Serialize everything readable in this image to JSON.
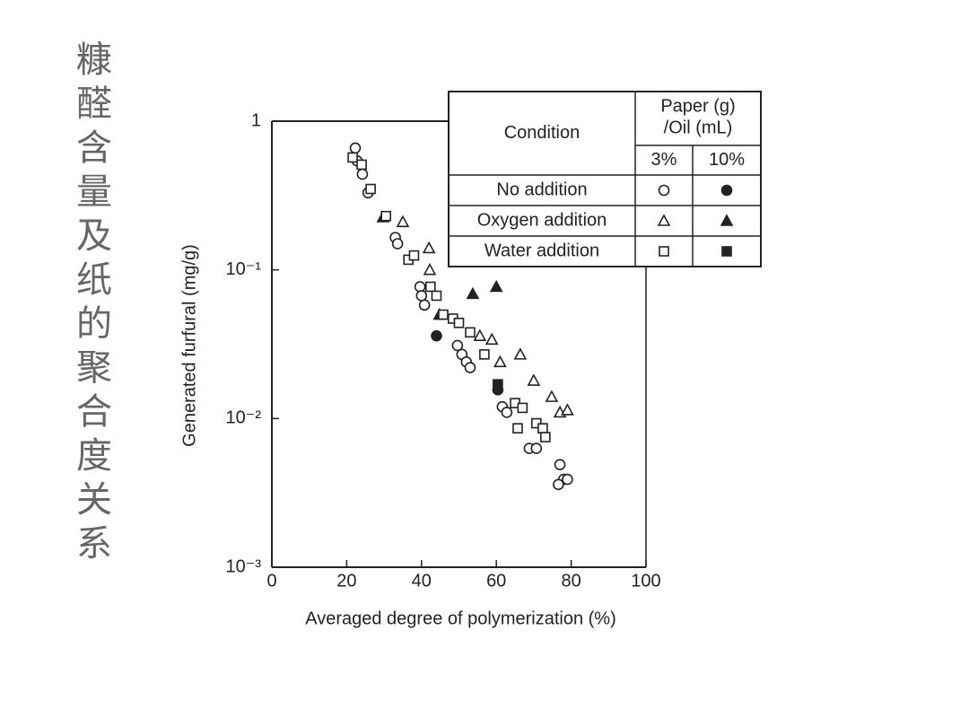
{
  "title": "糠醛含量及纸的聚合度关系",
  "chart_data": {
    "type": "scatter",
    "x_label": "Averaged degree of polymerization (%)",
    "y_label": "Generated furfural (mg/g)",
    "xlim": [
      0,
      100
    ],
    "xticks": [
      0,
      20,
      40,
      60,
      80,
      100
    ],
    "ylim": [
      0.001,
      1
    ],
    "y_scale": "log",
    "yticks": [
      {
        "value": 0.001,
        "label": "10⁻³"
      },
      {
        "value": 0.01,
        "label": "10⁻²"
      },
      {
        "value": 0.1,
        "label": "10⁻¹"
      },
      1
    ],
    "legend": {
      "header": "Condition",
      "ratio_header": [
        "Paper (g)",
        "/Oil (mL)"
      ],
      "ratios": [
        "3%",
        "10%"
      ]
    },
    "color": "#222222",
    "series": [
      {
        "name": "No addition",
        "marker": "circle",
        "groups": [
          {
            "x": [
              22.3,
              22.8,
              24.2,
              25.7,
              33,
              33.6,
              39.6,
              40,
              40.8,
              49.6,
              50.8,
              52,
              53,
              61.6,
              62.8,
              68.8,
              70.7,
              77,
              78,
              76.6,
              79
            ],
            "y": [
              0.66,
              0.54,
              0.44,
              0.33,
              0.165,
              0.15,
              0.077,
              0.067,
              0.058,
              0.031,
              0.027,
              0.024,
              0.022,
              0.012,
              0.011,
              0.0063,
              0.0063,
              0.0049,
              0.0039,
              0.0036,
              0.0039
            ]
          },
          {
            "x": [
              44,
              60.4
            ],
            "y": [
              0.036,
              0.0156
            ]
          }
        ]
      },
      {
        "name": "Oxygen addition",
        "marker": "triangle",
        "groups": [
          {
            "x": [
              35,
              42,
              42.2,
              55.6,
              58.8,
              61,
              66.4,
              70,
              74.8,
              77,
              79
            ],
            "y": [
              0.21,
              0.14,
              0.1,
              0.036,
              0.034,
              0.024,
              0.027,
              0.018,
              0.014,
              0.011,
              0.0114
            ]
          },
          {
            "x": [
              29.7,
              53.7,
              44.8,
              60
            ],
            "y": [
              0.226,
              0.069,
              0.05,
              0.077
            ]
          }
        ]
      },
      {
        "name": "Water addition",
        "marker": "square",
        "groups": [
          {
            "x": [
              21.6,
              24,
              26.4,
              30.5,
              36.5,
              38,
              42.4,
              44,
              45.8,
              48.4,
              50,
              53,
              56.8,
              65,
              65.7,
              67,
              70.7,
              72.4,
              73.1
            ],
            "y": [
              0.57,
              0.51,
              0.35,
              0.23,
              0.117,
              0.125,
              0.077,
              0.067,
              0.05,
              0.047,
              0.044,
              0.038,
              0.027,
              0.0127,
              0.0086,
              0.0118,
              0.0093,
              0.0086,
              0.0075
            ]
          },
          {
            "x": [
              60.4
            ],
            "y": [
              0.017
            ]
          }
        ]
      }
    ]
  }
}
